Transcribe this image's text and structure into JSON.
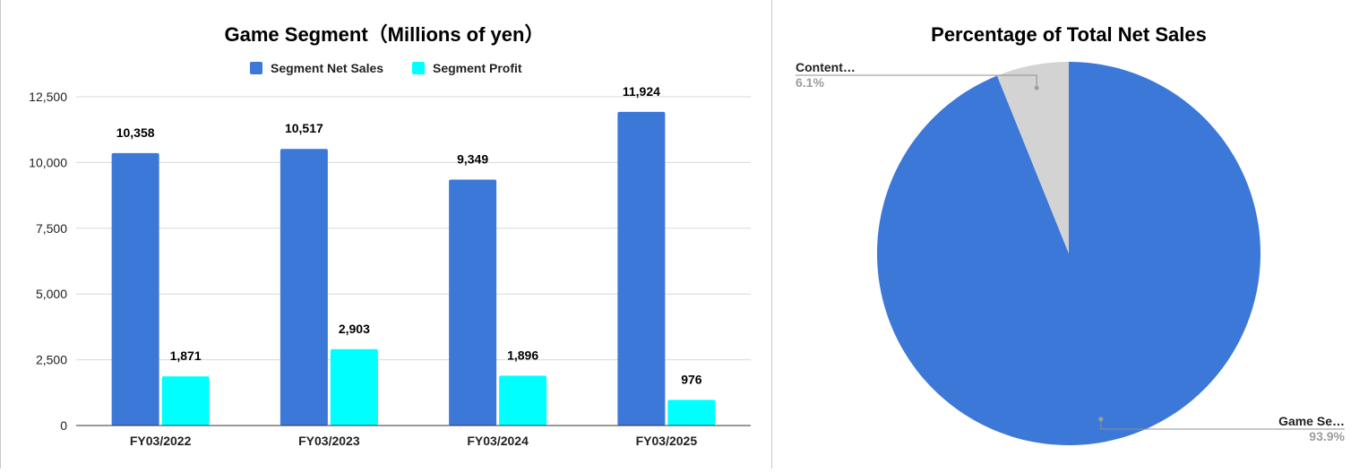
{
  "chart_data": [
    {
      "type": "bar",
      "title": "Game Segment（Millions of yen）",
      "categories": [
        "FY03/2022",
        "FY03/2023",
        "FY03/2024",
        "FY03/2025"
      ],
      "series": [
        {
          "name": "Segment Net Sales",
          "values": [
            10358,
            10517,
            9349,
            11924
          ],
          "labels": [
            "10,358",
            "10,517",
            "9,349",
            "11,924"
          ],
          "color": "#3c78d8"
        },
        {
          "name": "Segment Profit",
          "values": [
            1871,
            2903,
            1896,
            976
          ],
          "labels": [
            "1,871",
            "2,903",
            "1,896",
            "976"
          ],
          "color": "#00ffff"
        }
      ],
      "yticks": [
        0,
        2500,
        5000,
        7500,
        10000,
        12500
      ],
      "ytick_labels": [
        "0",
        "2,500",
        "5,000",
        "7,500",
        "10,000",
        "12,500"
      ],
      "ylim": [
        0,
        12500
      ],
      "grid": true,
      "legend_position": "top",
      "xlabel": "",
      "ylabel": ""
    },
    {
      "type": "pie",
      "title": "Percentage of Total Net Sales",
      "slices": [
        {
          "label": "Game Se…",
          "value": 93.9,
          "pct_label": "93.9%",
          "color": "#3c78d8"
        },
        {
          "label": "Content…",
          "value": 6.1,
          "pct_label": "6.1%",
          "color": "#d3d3d3"
        }
      ]
    }
  ]
}
